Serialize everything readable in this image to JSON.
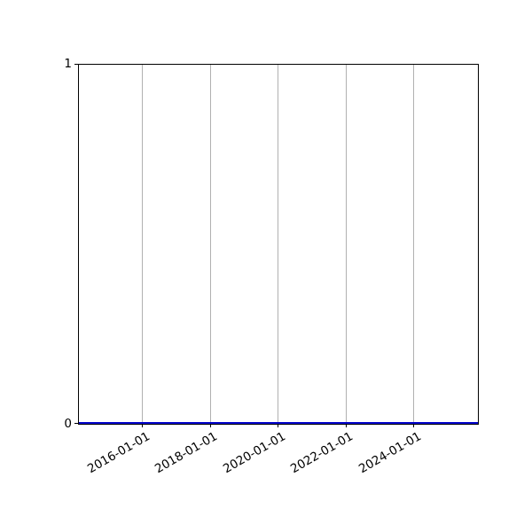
{
  "figure": {
    "background": "#ffffff"
  },
  "chart_data": {
    "type": "line",
    "title": "",
    "xlabel": "",
    "ylabel": "",
    "x_axis_kind": "date",
    "x_tick_labels": [
      "2016-01-01",
      "2018-01-01",
      "2020-01-01",
      "2022-01-01",
      "2024-01-01"
    ],
    "x_tick_rotation_deg": 30,
    "y_tick_labels": [
      "0",
      "1"
    ],
    "ylim": [
      0,
      1
    ],
    "grid": {
      "vertical": true,
      "horizontal": false,
      "color": "#b0b0b0"
    },
    "legend": "none",
    "spine_color": "#000000",
    "series": [
      {
        "name": "series-1",
        "color": "#0000cd",
        "constant_y_value": 0,
        "description": "flat horizontal line at y = 0 spanning the full x-axis width"
      }
    ]
  }
}
